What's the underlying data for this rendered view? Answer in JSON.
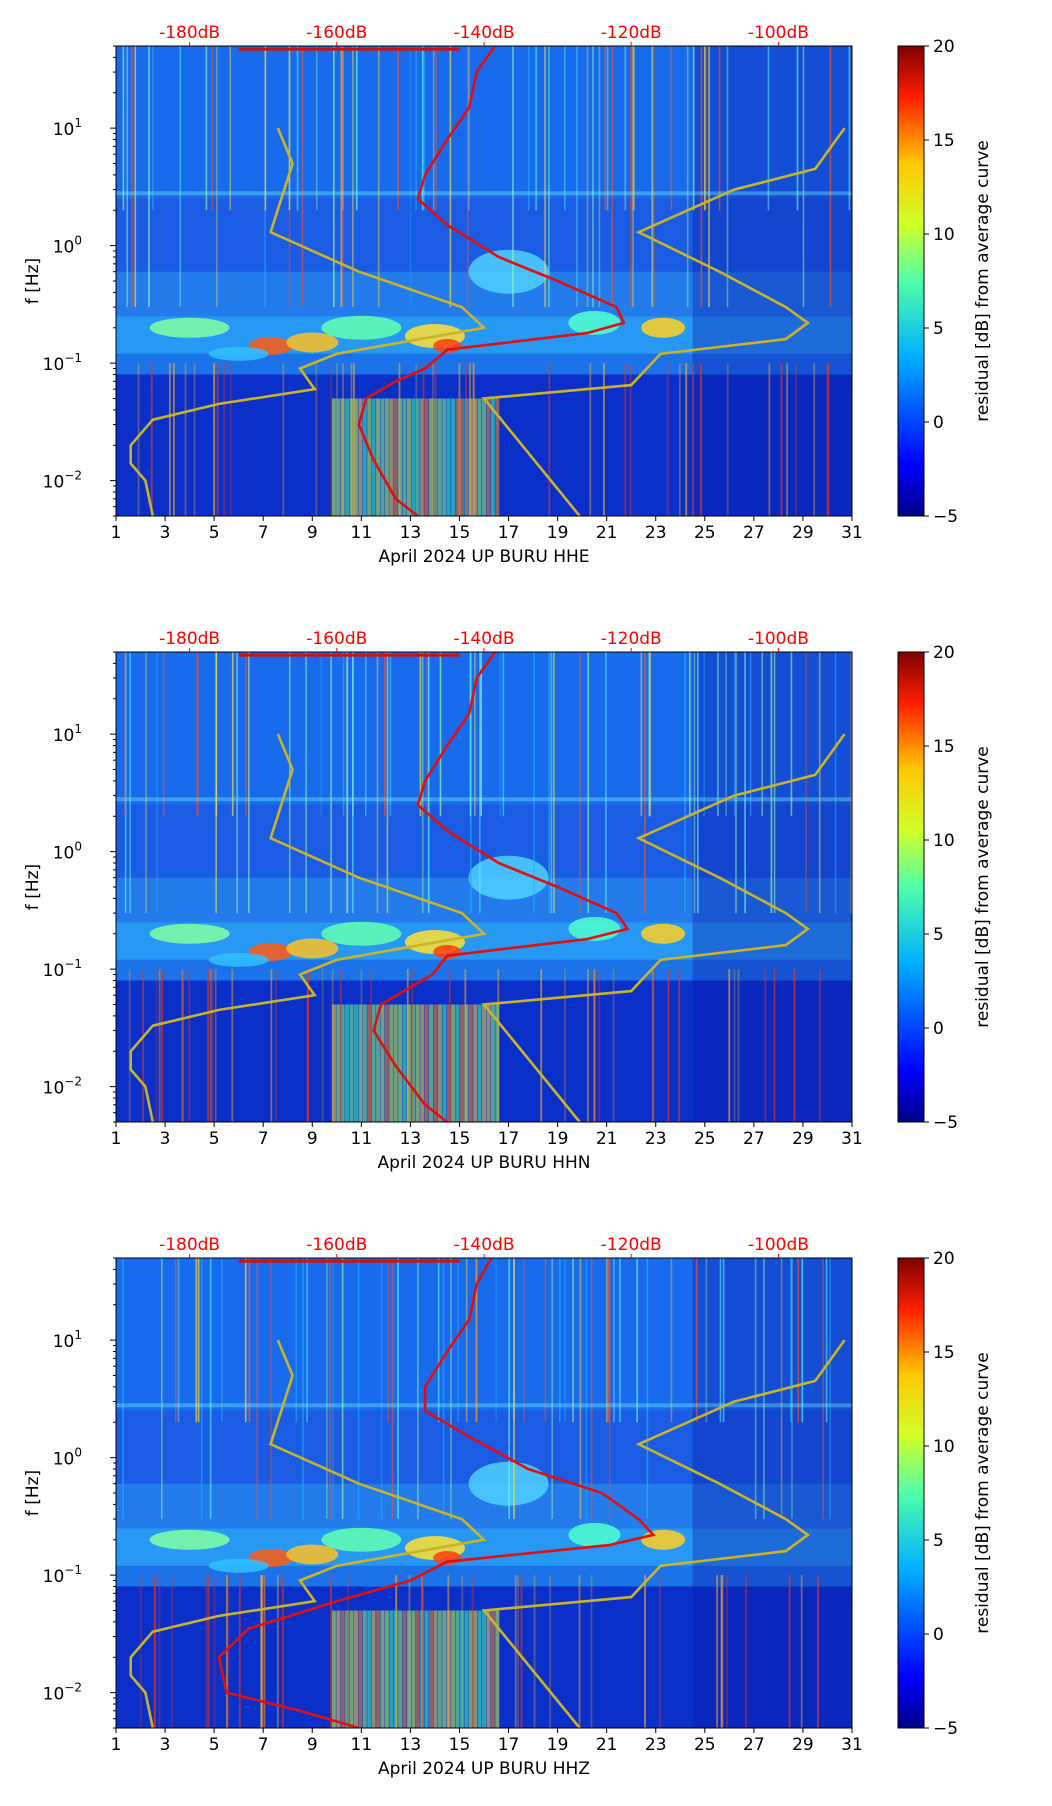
{
  "colors": {
    "db_scale": "#ff0000",
    "median_curve": "#e01010",
    "nlnm_nhnm": "#c8b428",
    "axis": "#000000"
  },
  "shared": {
    "x_ticks": [
      "1",
      "3",
      "5",
      "7",
      "9",
      "11",
      "13",
      "15",
      "17",
      "19",
      "21",
      "23",
      "25",
      "27",
      "29",
      "31"
    ],
    "y_ticks": [
      {
        "base": "10",
        "exp": "1",
        "value": 10
      },
      {
        "base": "10",
        "exp": "0",
        "value": 1
      },
      {
        "base": "10",
        "exp": "−1",
        "value": 0.1
      },
      {
        "base": "10",
        "exp": "−2",
        "value": 0.01
      }
    ],
    "db_ticks": [
      "-180dB",
      "-160dB",
      "-140dB",
      "-120dB",
      "-100dB"
    ],
    "db_tick_values": [
      -180,
      -160,
      -140,
      -120,
      -100
    ],
    "ylabel": "f [Hz]",
    "colorbar_label": "residual [dB] from average curve",
    "colorbar_ticks": [
      "20",
      "15",
      "10",
      "5",
      "0",
      "−5"
    ],
    "colorbar_values": [
      20,
      15,
      10,
      5,
      0,
      -5
    ]
  },
  "chart_data": [
    {
      "type": "heatmap",
      "xlabel": "April 2024 UP BURU  HHE",
      "xlim": [
        1,
        31
      ],
      "ylim_hz": [
        0.005,
        50
      ],
      "db_lim": [
        -190,
        -90
      ],
      "colorbar_range": [
        -5,
        20
      ],
      "db_curve": [
        {
          "db": -138.5,
          "hz": 50
        },
        {
          "db": -141,
          "hz": 30
        },
        {
          "db": -142,
          "hz": 15
        },
        {
          "db": -145,
          "hz": 8
        },
        {
          "db": -148,
          "hz": 4
        },
        {
          "db": -149,
          "hz": 2.5
        },
        {
          "db": -145,
          "hz": 1.5
        },
        {
          "db": -138,
          "hz": 0.8
        },
        {
          "db": -130,
          "hz": 0.5
        },
        {
          "db": -122,
          "hz": 0.3
        },
        {
          "db": -121,
          "hz": 0.22
        },
        {
          "db": -126,
          "hz": 0.18
        },
        {
          "db": -145,
          "hz": 0.13
        },
        {
          "db": -148,
          "hz": 0.09
        },
        {
          "db": -152,
          "hz": 0.07
        },
        {
          "db": -156,
          "hz": 0.05
        },
        {
          "db": -157,
          "hz": 0.03
        },
        {
          "db": -155,
          "hz": 0.015
        },
        {
          "db": -152,
          "hz": 0.007
        },
        {
          "db": -149,
          "hz": 0.005
        }
      ]
    },
    {
      "type": "heatmap",
      "xlabel": "April 2024 UP BURU  HHN",
      "xlim": [
        1,
        31
      ],
      "ylim_hz": [
        0.005,
        50
      ],
      "db_lim": [
        -190,
        -90
      ],
      "colorbar_range": [
        -5,
        20
      ],
      "db_curve": [
        {
          "db": -138.5,
          "hz": 50
        },
        {
          "db": -141,
          "hz": 30
        },
        {
          "db": -142,
          "hz": 15
        },
        {
          "db": -145,
          "hz": 8
        },
        {
          "db": -148,
          "hz": 4
        },
        {
          "db": -149,
          "hz": 2.5
        },
        {
          "db": -145,
          "hz": 1.5
        },
        {
          "db": -138,
          "hz": 0.8
        },
        {
          "db": -130,
          "hz": 0.5
        },
        {
          "db": -122,
          "hz": 0.3
        },
        {
          "db": -120.5,
          "hz": 0.22
        },
        {
          "db": -126,
          "hz": 0.18
        },
        {
          "db": -145,
          "hz": 0.13
        },
        {
          "db": -147,
          "hz": 0.09
        },
        {
          "db": -150,
          "hz": 0.07
        },
        {
          "db": -154,
          "hz": 0.05
        },
        {
          "db": -155,
          "hz": 0.03
        },
        {
          "db": -152,
          "hz": 0.015
        },
        {
          "db": -148,
          "hz": 0.007
        },
        {
          "db": -145,
          "hz": 0.005
        }
      ]
    },
    {
      "type": "heatmap",
      "xlabel": "April 2024 UP BURU  HHZ",
      "xlim": [
        1,
        31
      ],
      "ylim_hz": [
        0.005,
        50
      ],
      "db_lim": [
        -190,
        -90
      ],
      "colorbar_range": [
        -5,
        20
      ],
      "db_curve": [
        {
          "db": -139,
          "hz": 50
        },
        {
          "db": -141,
          "hz": 30
        },
        {
          "db": -142,
          "hz": 15
        },
        {
          "db": -145,
          "hz": 8
        },
        {
          "db": -148,
          "hz": 4
        },
        {
          "db": -148,
          "hz": 2.5
        },
        {
          "db": -142,
          "hz": 1.5
        },
        {
          "db": -134,
          "hz": 0.8
        },
        {
          "db": -124,
          "hz": 0.5
        },
        {
          "db": -119,
          "hz": 0.3
        },
        {
          "db": -117,
          "hz": 0.22
        },
        {
          "db": -123,
          "hz": 0.18
        },
        {
          "db": -145,
          "hz": 0.13
        },
        {
          "db": -150,
          "hz": 0.09
        },
        {
          "db": -160,
          "hz": 0.06
        },
        {
          "db": -172,
          "hz": 0.035
        },
        {
          "db": -176,
          "hz": 0.02
        },
        {
          "db": -175,
          "hz": 0.01
        },
        {
          "db": -165,
          "hz": 0.007
        },
        {
          "db": -157,
          "hz": 0.005
        }
      ]
    }
  ],
  "noise_model_curves": {
    "low_model": [
      {
        "db": -168,
        "hz": 10
      },
      {
        "db": -166,
        "hz": 5
      },
      {
        "db": -169,
        "hz": 1.3
      },
      {
        "db": -157,
        "hz": 0.6
      },
      {
        "db": -143,
        "hz": 0.3
      },
      {
        "db": -140,
        "hz": 0.2
      },
      {
        "db": -160,
        "hz": 0.12
      },
      {
        "db": -165,
        "hz": 0.09
      },
      {
        "db": -163,
        "hz": 0.06
      },
      {
        "db": -176,
        "hz": 0.045
      },
      {
        "db": -185,
        "hz": 0.033
      },
      {
        "db": -188,
        "hz": 0.02
      },
      {
        "db": -188,
        "hz": 0.014
      },
      {
        "db": -186,
        "hz": 0.01
      },
      {
        "db": -185,
        "hz": 0.005
      }
    ],
    "high_model": [
      {
        "db": -91,
        "hz": 10
      },
      {
        "db": -95,
        "hz": 4.5
      },
      {
        "db": -106,
        "hz": 3
      },
      {
        "db": -119,
        "hz": 1.3
      },
      {
        "db": -108,
        "hz": 0.6
      },
      {
        "db": -99,
        "hz": 0.3
      },
      {
        "db": -96,
        "hz": 0.22
      },
      {
        "db": -99,
        "hz": 0.16
      },
      {
        "db": -116,
        "hz": 0.12
      },
      {
        "db": -120,
        "hz": 0.065
      },
      {
        "db": -140,
        "hz": 0.05
      },
      {
        "db": -127,
        "hz": 0.005
      }
    ]
  }
}
